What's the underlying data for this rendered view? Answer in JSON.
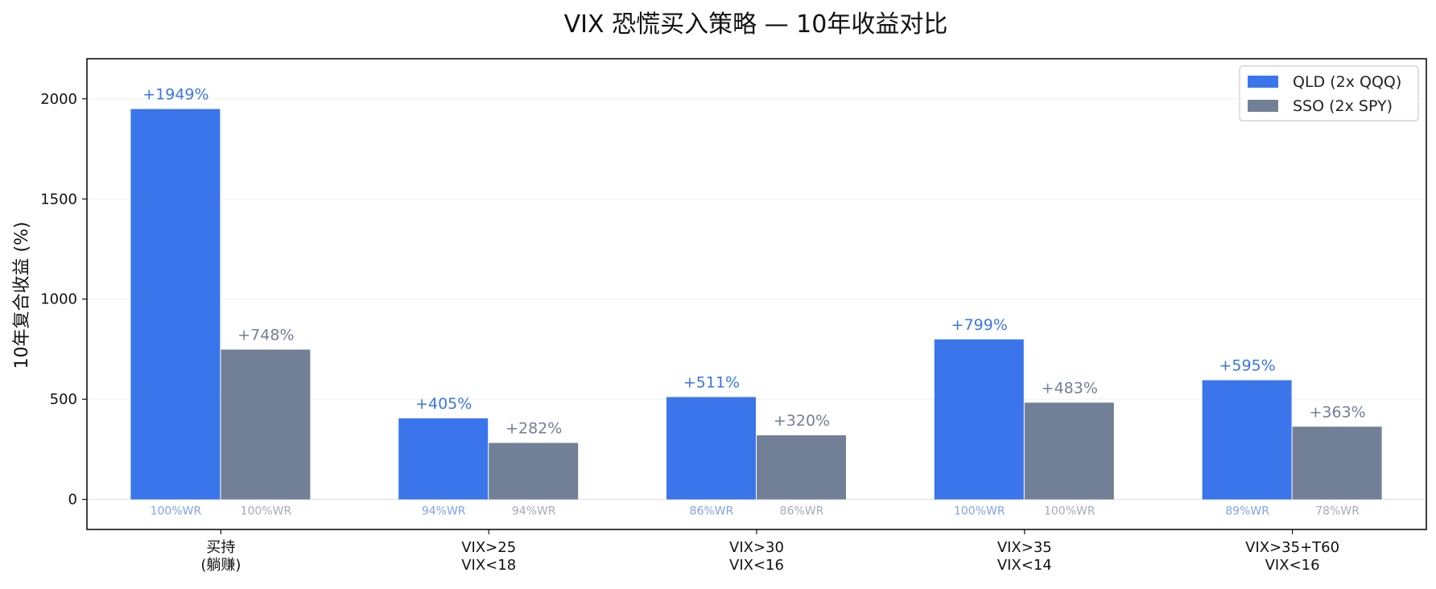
{
  "chart_data": {
    "type": "bar",
    "title": "VIX 恐慌买入策略 — 10年收益对比",
    "xlabel": "",
    "ylabel": "10年复合收益 (%)",
    "ylim": [
      -150,
      2200
    ],
    "yticks": [
      0,
      500,
      1000,
      1500,
      2000
    ],
    "grid": true,
    "legend_position": "top-right",
    "categories": [
      [
        "买持",
        "(躺赚)"
      ],
      [
        "VIX>25",
        "VIX<18"
      ],
      [
        "VIX>30",
        "VIX<16"
      ],
      [
        "VIX>35",
        "VIX<14"
      ],
      [
        "VIX>35+T60",
        "VIX<16"
      ]
    ],
    "series": [
      {
        "name": "QLD (2x QQQ)",
        "color": "#3b75eb",
        "label_color": "#3b75eb",
        "wr_color": "#7fa3f0",
        "values": [
          1949,
          405,
          511,
          799,
          595
        ],
        "labels": [
          "+1949%",
          "+405%",
          "+511%",
          "+799%",
          "+595%"
        ],
        "win_rates": [
          "100%WR",
          "94%WR",
          "86%WR",
          "100%WR",
          "89%WR"
        ]
      },
      {
        "name": "SSO (2x SPY)",
        "color": "#718096",
        "label_color": "#718096",
        "wr_color": "#a3acb9",
        "values": [
          748,
          282,
          320,
          483,
          363
        ],
        "labels": [
          "+748%",
          "+282%",
          "+320%",
          "+483%",
          "+363%"
        ],
        "win_rates": [
          "100%WR",
          "94%WR",
          "86%WR",
          "100%WR",
          "78%WR"
        ]
      }
    ]
  }
}
